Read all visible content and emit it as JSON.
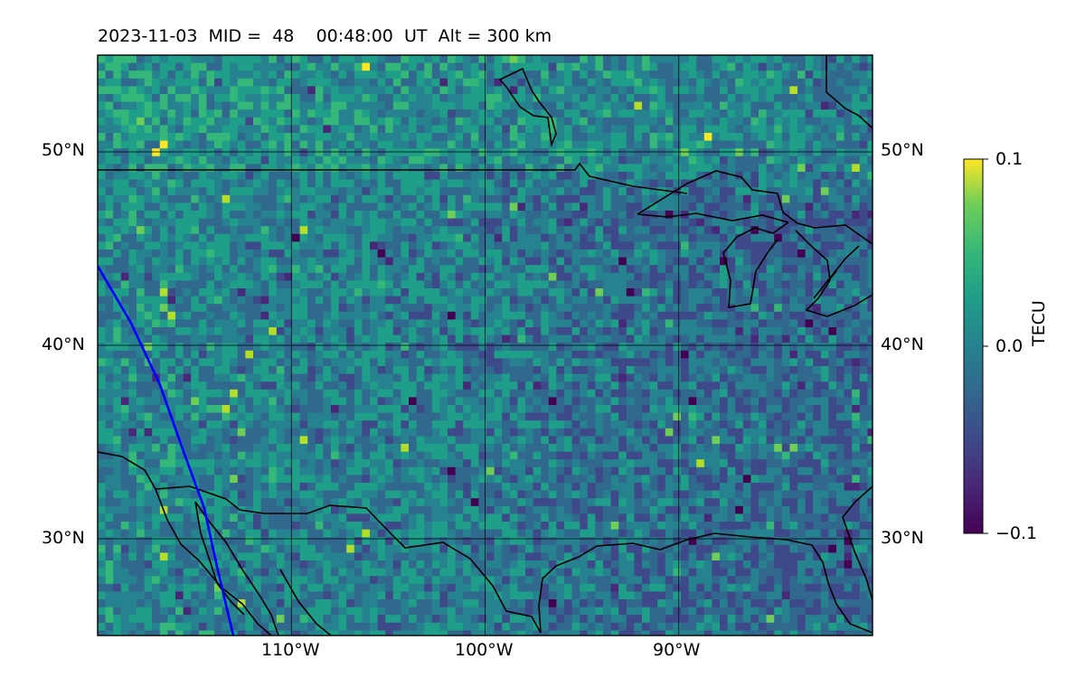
{
  "title": {
    "date": "2023-11-03",
    "mid_label": "MID =",
    "mid_value": "48",
    "time": "00:48:00",
    "time_unit": "UT",
    "alt_label": "Alt =",
    "alt_value": "300 km"
  },
  "map": {
    "lon_range": [
      -120,
      -80
    ],
    "lat_range": [
      25,
      55
    ],
    "lat_ticks": [
      {
        "value": 50,
        "label": "50°N"
      },
      {
        "value": 40,
        "label": "40°N"
      },
      {
        "value": 30,
        "label": "30°N"
      }
    ],
    "lon_ticks": [
      {
        "value": -110,
        "label": "110°W"
      },
      {
        "value": -100,
        "label": "100°W"
      },
      {
        "value": -90,
        "label": "90°W"
      }
    ],
    "grid": true,
    "colormap": "viridis",
    "coastline_color": "#000000",
    "track_color": "#0000ff",
    "track": [
      [
        -120,
        44.1
      ],
      [
        -118.3,
        41.2
      ],
      [
        -116.8,
        38.0
      ],
      [
        -115.6,
        34.6
      ],
      [
        -114.5,
        31.6
      ],
      [
        -113.8,
        28.4
      ],
      [
        -113.0,
        25.0
      ]
    ]
  },
  "colorbar": {
    "label": "TECU",
    "ticks": [
      {
        "value": 0.1,
        "label": "0.1"
      },
      {
        "value": 0.0,
        "label": "0.0"
      },
      {
        "value": -0.1,
        "label": "−0.1"
      }
    ],
    "range": [
      -0.1,
      0.1
    ]
  }
}
